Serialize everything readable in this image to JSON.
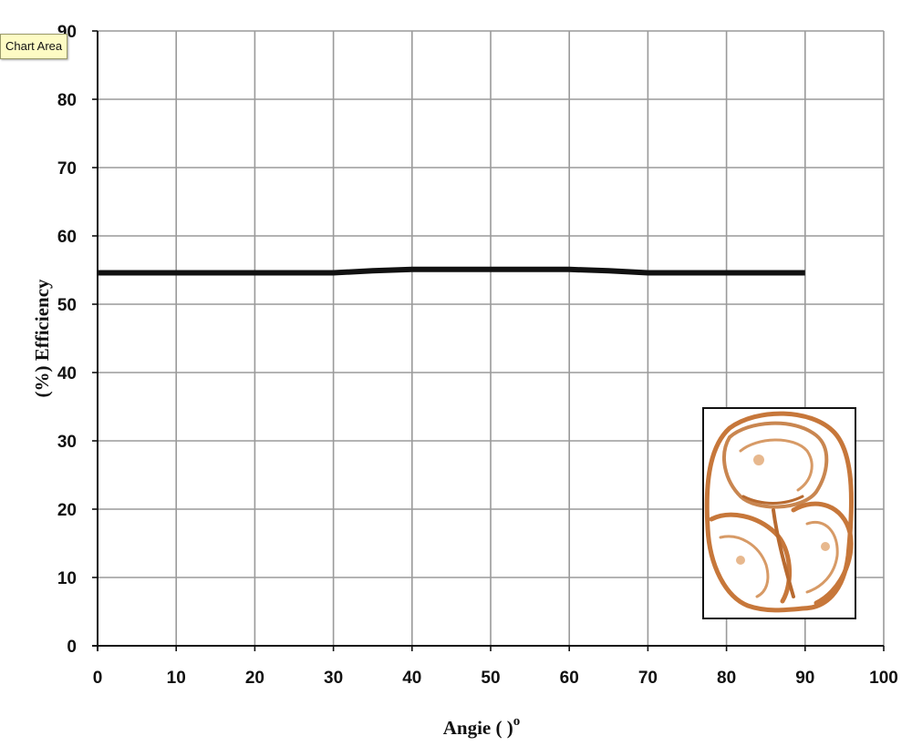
{
  "tooltip": {
    "label": "Chart Area"
  },
  "chart_data": {
    "type": "line",
    "xlabel": "Angie ( )",
    "xlabel_superscript": "o",
    "ylabel": "(%)  Efficiency",
    "xlim": [
      0,
      100
    ],
    "ylim": [
      0,
      90
    ],
    "xticks": [
      "0",
      "10",
      "20",
      "30",
      "40",
      "50",
      "60",
      "70",
      "80",
      "90",
      "100"
    ],
    "yticks": [
      "0",
      "10",
      "20",
      "30",
      "40",
      "50",
      "60",
      "70",
      "80",
      "90"
    ],
    "grid": true,
    "legend": "none",
    "line_color": "#111111",
    "series": [
      {
        "x": [
          0,
          10,
          20,
          30,
          35,
          40,
          50,
          60,
          65,
          70,
          80,
          90
        ],
        "y": [
          54.6,
          54.6,
          54.6,
          54.6,
          54.9,
          55.1,
          55.1,
          55.1,
          54.9,
          54.6,
          54.6,
          54.6
        ]
      }
    ],
    "inset_image": "cross-section-photo-icon",
    "inset_color": "#c7773a"
  }
}
